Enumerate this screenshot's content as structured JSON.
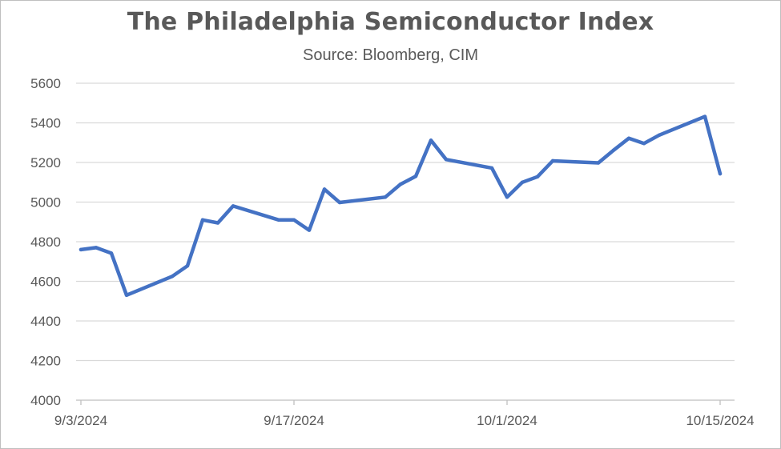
{
  "chart_data": {
    "type": "line",
    "title": "The Philadelphia Semiconductor Index",
    "subtitle": "Source: Bloomberg, CIM",
    "xlabel": "",
    "ylabel": "",
    "ylim": [
      4000,
      5600
    ],
    "yticks": [
      4000,
      4200,
      4400,
      4600,
      4800,
      5000,
      5200,
      5400,
      5600
    ],
    "xlim": [
      "2024-09-03",
      "2024-10-15"
    ],
    "xticks": [
      "2024-09-03",
      "2024-09-17",
      "2024-10-01",
      "2024-10-15"
    ],
    "xtick_labels": [
      "9/3/2024",
      "9/17/2024",
      "10/1/2024",
      "10/15/2024"
    ],
    "grid": "horizontal",
    "line_color": "#4472c4",
    "series": [
      {
        "name": "",
        "x": [
          "2024-09-03",
          "2024-09-04",
          "2024-09-05",
          "2024-09-06",
          "2024-09-09",
          "2024-09-10",
          "2024-09-11",
          "2024-09-12",
          "2024-09-13",
          "2024-09-16",
          "2024-09-17",
          "2024-09-18",
          "2024-09-19",
          "2024-09-20",
          "2024-09-23",
          "2024-09-24",
          "2024-09-25",
          "2024-09-26",
          "2024-09-27",
          "2024-09-30",
          "2024-10-01",
          "2024-10-02",
          "2024-10-03",
          "2024-10-04",
          "2024-10-07",
          "2024-10-08",
          "2024-10-09",
          "2024-10-10",
          "2024-10-11",
          "2024-10-14",
          "2024-10-15"
        ],
        "y": [
          4760,
          4770,
          4742,
          4530,
          4625,
          4678,
          4910,
          4895,
          4980,
          4910,
          4910,
          4858,
          5065,
          4998,
          5025,
          5090,
          5130,
          5312,
          5215,
          5172,
          5025,
          5100,
          5128,
          5208,
          5198,
          5262,
          5322,
          5296,
          5338,
          5432,
          5143
        ]
      }
    ]
  }
}
